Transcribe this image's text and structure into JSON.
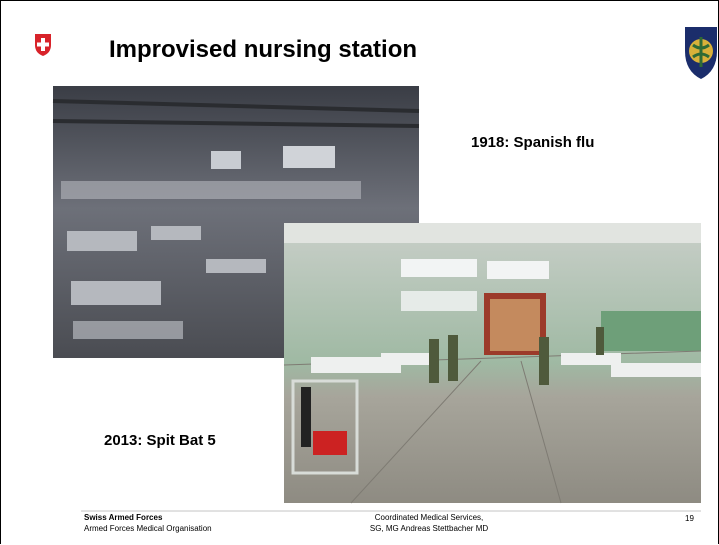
{
  "header": {
    "title": "Improvised nursing station"
  },
  "captions": [
    "1918: Spanish flu",
    "2013: Spit Bat 5"
  ],
  "footer": {
    "organization": "Swiss Armed Forces",
    "unit": "Armed Forces Medical Organisation",
    "center_line1": "Coordinated Medical Services,",
    "center_line2": "SG, MG Andreas Stettbacher MD",
    "page": "19"
  }
}
